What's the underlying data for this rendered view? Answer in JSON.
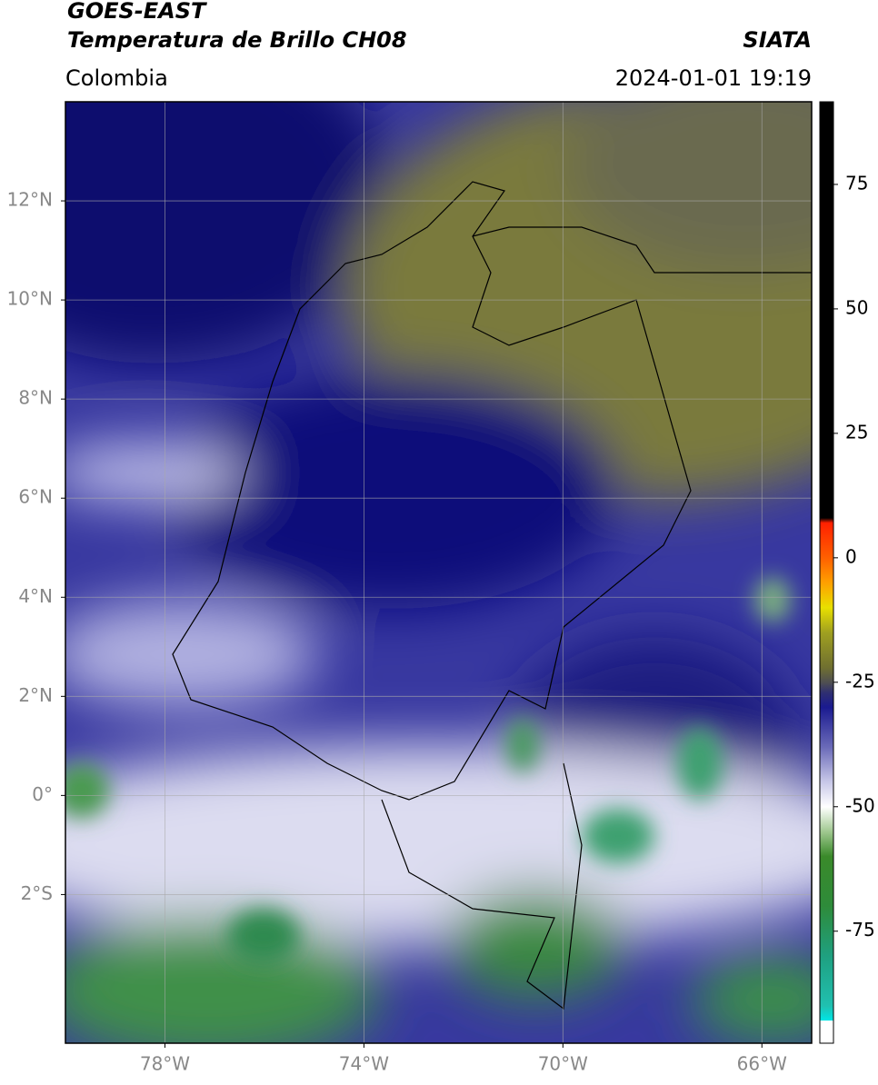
{
  "header": {
    "title": "GOES-EAST",
    "subtitle": "Temperatura de Brillo CH08",
    "source": "SIATA",
    "region": "Colombia",
    "timestamp": "2024-01-01 19:19"
  },
  "map": {
    "lonlim": [
      -80,
      -65
    ],
    "latlim": [
      -5,
      14
    ],
    "grid": true,
    "lonticks": [
      {
        "value": -78,
        "label": "78°W"
      },
      {
        "value": -74,
        "label": "74°W"
      },
      {
        "value": -70,
        "label": "70°W"
      },
      {
        "value": -66,
        "label": "66°W"
      }
    ],
    "latticks": [
      {
        "value": 12,
        "label": "12°N"
      },
      {
        "value": 10,
        "label": "10°N"
      },
      {
        "value": 8,
        "label": "8°N"
      },
      {
        "value": 6,
        "label": "6°N"
      },
      {
        "value": 4,
        "label": "4°N"
      },
      {
        "value": 2,
        "label": "2°N"
      },
      {
        "value": 0,
        "label": "0°"
      },
      {
        "value": -2,
        "label": "2°S"
      }
    ]
  },
  "colorbar": {
    "lim": [
      -97.5,
      91.6
    ],
    "ticks": [
      75,
      50,
      25,
      0,
      -25,
      -50,
      -75
    ],
    "stops": [
      {
        "value": -97.5,
        "color": "#ffffff"
      },
      {
        "value": -93,
        "color": "#ffffff"
      },
      {
        "value": -92.9,
        "color": "#00e5e5"
      },
      {
        "value": -90,
        "color": "#20c0b0"
      },
      {
        "value": -80,
        "color": "#1fa080"
      },
      {
        "value": -70,
        "color": "#2e8b3a"
      },
      {
        "value": -60,
        "color": "#3a8a2a"
      },
      {
        "value": -55,
        "color": "#a0c890"
      },
      {
        "value": -50,
        "color": "#ffffff"
      },
      {
        "value": -45,
        "color": "#c8c8e8"
      },
      {
        "value": -38,
        "color": "#6a6ab8"
      },
      {
        "value": -30,
        "color": "#1a1a90"
      },
      {
        "value": -27,
        "color": "#303070"
      },
      {
        "value": -25,
        "color": "#505050"
      },
      {
        "value": -22,
        "color": "#707030"
      },
      {
        "value": -15,
        "color": "#a0a020"
      },
      {
        "value": -10,
        "color": "#e8e000"
      },
      {
        "value": -5,
        "color": "#ffa000"
      },
      {
        "value": 0,
        "color": "#ff6000"
      },
      {
        "value": 7,
        "color": "#ff2000"
      },
      {
        "value": 8,
        "color": "#000000"
      },
      {
        "value": 91.6,
        "color": "#000000"
      }
    ]
  }
}
